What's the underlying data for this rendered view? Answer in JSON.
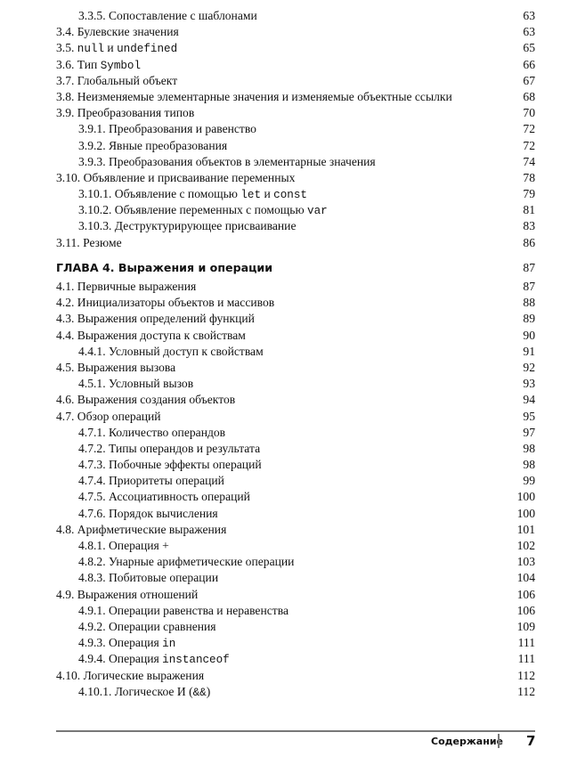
{
  "toc_before": [
    {
      "level": 2,
      "parts": [
        {
          "t": "3.3.5. Сопоставление с шаблонами"
        }
      ],
      "page": "63"
    },
    {
      "level": 1,
      "parts": [
        {
          "t": "3.4. Булевские значения"
        }
      ],
      "page": "63"
    },
    {
      "level": 1,
      "parts": [
        {
          "t": "3.5. "
        },
        {
          "t": "null",
          "code": true
        },
        {
          "t": " и "
        },
        {
          "t": "undefined",
          "code": true
        }
      ],
      "page": "65"
    },
    {
      "level": 1,
      "parts": [
        {
          "t": "3.6. Тип "
        },
        {
          "t": "Symbol",
          "code": true
        }
      ],
      "page": "66"
    },
    {
      "level": 1,
      "parts": [
        {
          "t": "3.7. Глобальный объект"
        }
      ],
      "page": "67"
    },
    {
      "level": 1,
      "parts": [
        {
          "t": "3.8. Неизменяемые элементарные значения и изменяемые объектные ссылки"
        }
      ],
      "page": "68"
    },
    {
      "level": 1,
      "parts": [
        {
          "t": "3.9. Преобразования типов"
        }
      ],
      "page": "70"
    },
    {
      "level": 2,
      "parts": [
        {
          "t": "3.9.1. Преобразования и равенство"
        }
      ],
      "page": "72"
    },
    {
      "level": 2,
      "parts": [
        {
          "t": "3.9.2. Явные преобразования"
        }
      ],
      "page": "72"
    },
    {
      "level": 2,
      "parts": [
        {
          "t": "3.9.3. Преобразования объектов в элементарные значения"
        }
      ],
      "page": "74"
    },
    {
      "level": 1,
      "parts": [
        {
          "t": "3.10. Объявление и присваивание переменных"
        }
      ],
      "page": "78"
    },
    {
      "level": 2,
      "parts": [
        {
          "t": "3.10.1. Объявление с помощью "
        },
        {
          "t": "let",
          "code": true
        },
        {
          "t": " и "
        },
        {
          "t": "const",
          "code": true
        }
      ],
      "page": "79"
    },
    {
      "level": 2,
      "parts": [
        {
          "t": "3.10.2. Объявление переменных с помощью "
        },
        {
          "t": "var",
          "code": true
        }
      ],
      "page": "81"
    },
    {
      "level": 2,
      "parts": [
        {
          "t": "3.10.3. Деструктурирующее присваивание"
        }
      ],
      "page": "83"
    },
    {
      "level": 1,
      "parts": [
        {
          "t": "3.11. Резюме"
        }
      ],
      "page": "86"
    }
  ],
  "chapter": {
    "title": "ГЛАВА 4. Выражения и операции",
    "page": "87"
  },
  "toc_after": [
    {
      "level": 1,
      "parts": [
        {
          "t": "4.1. Первичные выражения"
        }
      ],
      "page": "87"
    },
    {
      "level": 1,
      "parts": [
        {
          "t": "4.2. Инициализаторы объектов и массивов"
        }
      ],
      "page": "88"
    },
    {
      "level": 1,
      "parts": [
        {
          "t": "4.3. Выражения определений функций"
        }
      ],
      "page": "89"
    },
    {
      "level": 1,
      "parts": [
        {
          "t": "4.4. Выражения доступа к свойствам"
        }
      ],
      "page": "90"
    },
    {
      "level": 2,
      "parts": [
        {
          "t": "4.4.1. Условный доступ к свойствам"
        }
      ],
      "page": "91"
    },
    {
      "level": 1,
      "parts": [
        {
          "t": "4.5. Выражения вызова"
        }
      ],
      "page": "92"
    },
    {
      "level": 2,
      "parts": [
        {
          "t": "4.5.1. Условный вызов"
        }
      ],
      "page": "93"
    },
    {
      "level": 1,
      "parts": [
        {
          "t": "4.6. Выражения создания объектов"
        }
      ],
      "page": "94"
    },
    {
      "level": 1,
      "parts": [
        {
          "t": "4.7. Обзор операций"
        }
      ],
      "page": "95"
    },
    {
      "level": 2,
      "parts": [
        {
          "t": "4.7.1. Количество операндов"
        }
      ],
      "page": "97"
    },
    {
      "level": 2,
      "parts": [
        {
          "t": "4.7.2. Типы операндов и результата"
        }
      ],
      "page": "98"
    },
    {
      "level": 2,
      "parts": [
        {
          "t": "4.7.3. Побочные эффекты операций"
        }
      ],
      "page": "98"
    },
    {
      "level": 2,
      "parts": [
        {
          "t": "4.7.4. Приоритеты операций"
        }
      ],
      "page": "99"
    },
    {
      "level": 2,
      "parts": [
        {
          "t": "4.7.5. Ассоциативность операций"
        }
      ],
      "page": "100"
    },
    {
      "level": 2,
      "parts": [
        {
          "t": "4.7.6. Порядок вычисления"
        }
      ],
      "page": "100"
    },
    {
      "level": 1,
      "parts": [
        {
          "t": "4.8. Арифметические выражения"
        }
      ],
      "page": "101"
    },
    {
      "level": 2,
      "parts": [
        {
          "t": "4.8.1. Операция +"
        }
      ],
      "page": "102"
    },
    {
      "level": 2,
      "parts": [
        {
          "t": "4.8.2. Унарные арифметические операции"
        }
      ],
      "page": "103"
    },
    {
      "level": 2,
      "parts": [
        {
          "t": "4.8.3. Побитовые операции"
        }
      ],
      "page": "104"
    },
    {
      "level": 1,
      "parts": [
        {
          "t": "4.9. Выражения отношений"
        }
      ],
      "page": "106"
    },
    {
      "level": 2,
      "parts": [
        {
          "t": "4.9.1. Операции равенства и неравенства"
        }
      ],
      "page": "106"
    },
    {
      "level": 2,
      "parts": [
        {
          "t": "4.9.2. Операции сравнения"
        }
      ],
      "page": "109"
    },
    {
      "level": 2,
      "parts": [
        {
          "t": "4.9.3. Операция "
        },
        {
          "t": "in",
          "code": true
        }
      ],
      "page": "111"
    },
    {
      "level": 2,
      "parts": [
        {
          "t": "4.9.4. Операция "
        },
        {
          "t": "instanceof",
          "code": true
        }
      ],
      "page": "111"
    },
    {
      "level": 1,
      "parts": [
        {
          "t": "4.10. Логические выражения"
        }
      ],
      "page": "112"
    },
    {
      "level": 2,
      "parts": [
        {
          "t": "4.10.1. Логическое И ("
        },
        {
          "t": "&&",
          "code": true
        },
        {
          "t": ")"
        }
      ],
      "page": "112"
    }
  ],
  "footer": {
    "section": "Содержание",
    "page_number": "7"
  }
}
